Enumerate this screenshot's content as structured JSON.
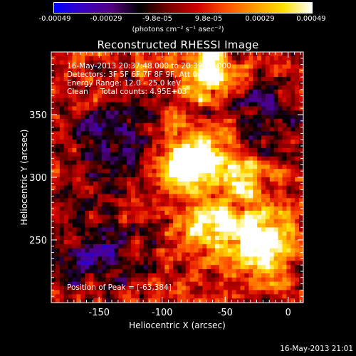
{
  "colorbar": {
    "ticks": [
      "-0.00049",
      "-0.00029",
      "-9.8e-05",
      "9.8e-05",
      "0.00029",
      "0.00049"
    ],
    "units": "(photons cm⁻² s⁻¹ asec⁻²)",
    "vmin": -0.00049,
    "vmax": 0.00049,
    "colormap": [
      "#0000ff",
      "#3a00c0",
      "#520080",
      "#000000",
      "#7a0000",
      "#d00000",
      "#ff5000",
      "#ff9a00",
      "#ffe000",
      "#ffffff"
    ]
  },
  "info": {
    "time_range": "16-May-2013 20:37:48.000 to 20:39:00.000",
    "detectors": "Detectors: 3F 5F 6F 7F 8F 9F, Att 0",
    "energy_range": "Energy Range: 12.0 - 25.0 keV",
    "algorithm": "Clean     Total counts: 4.95E+03",
    "peak": "Position of Peak = [-63,384]"
  },
  "footer": {
    "timestamp": "16-May-2013 21:01"
  },
  "chart_data": {
    "type": "heatmap",
    "title": "Reconstructed RHESSI Image",
    "xlabel": "Heliocentric X (arcsec)",
    "ylabel": "Heliocentric Y (arcsec)",
    "xlim": [
      -188,
      12
    ],
    "ylim": [
      200,
      400
    ],
    "x_ticks": [
      -150,
      -100,
      -50,
      0
    ],
    "y_ticks": [
      250,
      300,
      350
    ],
    "peak": [
      -63,
      384
    ],
    "value_range": [
      -0.00049,
      0.00049
    ],
    "hot_spots": [
      {
        "x": -63,
        "y": 384,
        "value": 0.00049
      },
      {
        "x": -70,
        "y": 318,
        "value": 0.00045
      },
      {
        "x": -85,
        "y": 310,
        "value": 0.00042
      },
      {
        "x": -35,
        "y": 300,
        "value": 0.00035
      },
      {
        "x": -62,
        "y": 260,
        "value": 0.00042
      },
      {
        "x": -28,
        "y": 258,
        "value": 0.00045
      },
      {
        "x": -18,
        "y": 240,
        "value": 0.0004
      }
    ],
    "cold_spots": [
      {
        "x": -140,
        "y": 330,
        "value": -0.0003
      },
      {
        "x": -150,
        "y": 240,
        "value": -0.00028
      },
      {
        "x": -20,
        "y": 345,
        "value": -0.00025
      }
    ]
  }
}
